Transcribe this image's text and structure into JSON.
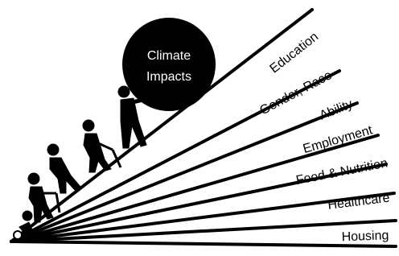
{
  "circle": {
    "lines": [
      "Climate",
      "Impacts"
    ]
  },
  "categories": [
    "Education",
    "Gender, Race",
    "Ability",
    "Employment",
    "Food & Nutrition",
    "Healthcare",
    "Housing"
  ]
}
